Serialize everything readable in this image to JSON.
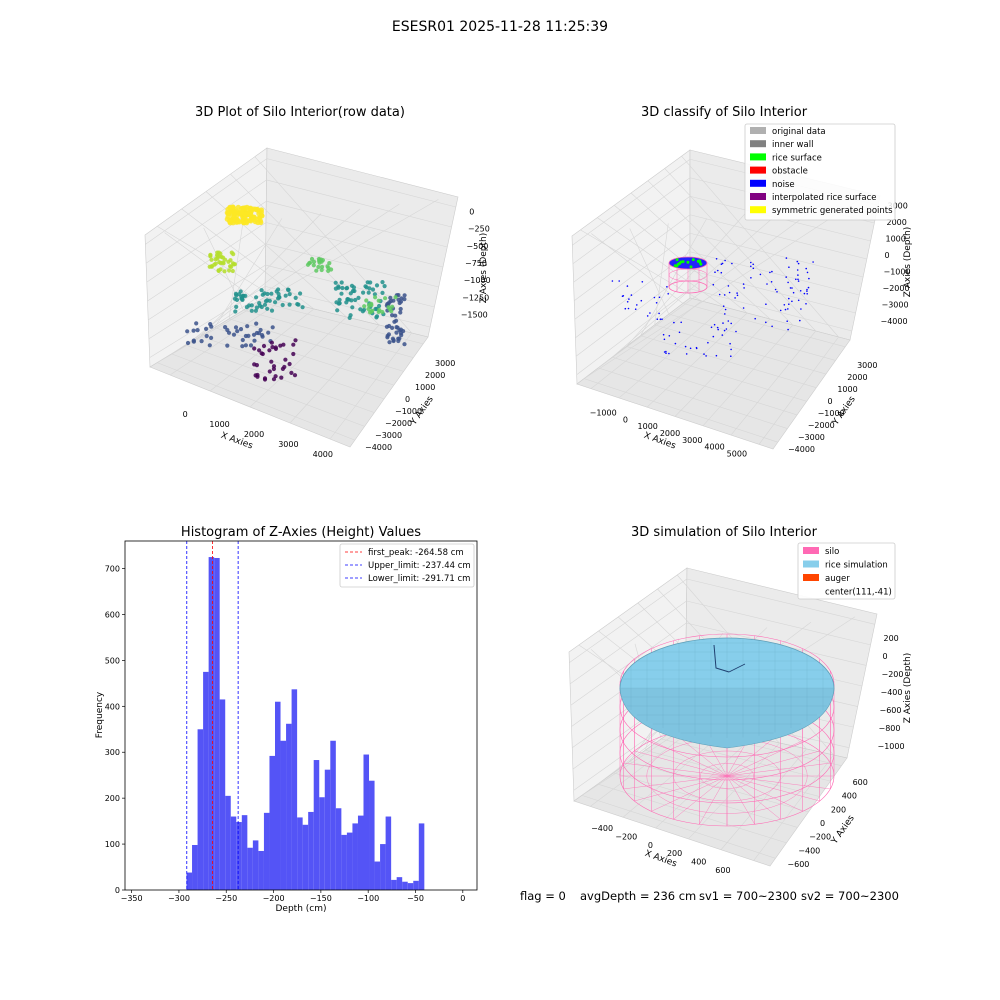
{
  "suptitle": "ESESR01 2025-11-28 11:25:39",
  "footer": {
    "flag": "flag = 0",
    "avg_depth": "avgDepth = 236 cm",
    "sv1": "sv1 = 700~2300",
    "sv2": "sv2 = 700~2300"
  },
  "colors": {
    "histogram_bar": "#4b4bf5",
    "first_peak_line": "#ff0000",
    "limit_lines": "#0000ff",
    "silo": "#ff69b4",
    "rice_simulation": "#87ceeb",
    "auger": "#ff4500",
    "rice_surface": "#00ff00",
    "noise": "#0000ff"
  },
  "chart_data": [
    {
      "type": "scatter",
      "projection": "3d",
      "title": "3D Plot of Silo Interior(row data)",
      "xlabel": "X Axies",
      "ylabel": "Y Axies",
      "zlabel": "Z Axies (Depth)",
      "x_ticks": [
        "0",
        "1000",
        "2000",
        "3000",
        "4000"
      ],
      "y_ticks": [
        "−4000",
        "−3000",
        "−2000",
        "−1000",
        "0",
        "1000",
        "2000",
        "3000"
      ],
      "z_ticks": [
        "0",
        "−250",
        "−500",
        "−750",
        "−1000",
        "−1250",
        "−1500"
      ],
      "colormap": "viridis",
      "grid": true
    },
    {
      "type": "scatter",
      "projection": "3d",
      "title": "3D classify of Silo Interior",
      "xlabel": "X Axies",
      "ylabel": "Y Axies",
      "zlabel": "Z Axies (Depth)",
      "x_ticks": [
        "−1000",
        "0",
        "1000",
        "2000",
        "3000",
        "4000",
        "5000"
      ],
      "y_ticks": [
        "−4000",
        "−3000",
        "−2000",
        "−1000",
        "0",
        "1000",
        "2000",
        "3000"
      ],
      "z_ticks": [
        "3000",
        "2000",
        "1000",
        "0",
        "−1000",
        "−2000",
        "−3000",
        "−4000"
      ],
      "legend_position": "top-right",
      "legend": [
        {
          "label": "original data",
          "color": "#b0b0b0"
        },
        {
          "label": "inner wall",
          "color": "#808080"
        },
        {
          "label": "rice surface",
          "color": "#00ff00"
        },
        {
          "label": "obstacle",
          "color": "#ff0000"
        },
        {
          "label": "noise",
          "color": "#0000ff"
        },
        {
          "label": "interpolated rice surface",
          "color": "#800080"
        },
        {
          "label": "symmetric generated points",
          "color": "#ffff00"
        }
      ],
      "grid": true
    },
    {
      "type": "bar",
      "title": "Histogram of Z-Axies (Height) Values",
      "xlabel": "Depth (cm)",
      "ylabel": "Frequency",
      "xlim": [
        -357,
        15
      ],
      "ylim": [
        0,
        760
      ],
      "x_ticks": [
        -350,
        -300,
        -250,
        -200,
        -150,
        -100,
        -50,
        0
      ],
      "y_ticks": [
        0,
        100,
        200,
        300,
        400,
        500,
        600,
        700
      ],
      "bins": {
        "start": -292,
        "width": 5.845,
        "counts": [
          38,
          98,
          350,
          475,
          725,
          723,
          415,
          205,
          160,
          148,
          163,
          92,
          108,
          85,
          168,
          292,
          410,
          325,
          362,
          437,
          158,
          142,
          170,
          283,
          202,
          262,
          325,
          178,
          120,
          125,
          145,
          162,
          295,
          238,
          62,
          100,
          160,
          22,
          28,
          18,
          15,
          20,
          145
        ]
      },
      "vlines": [
        {
          "x": -264.58,
          "label": "first_peak: -264.58 cm",
          "color": "#ff0000"
        },
        {
          "x": -237.44,
          "label": "Upper_limit: -237.44 cm",
          "color": "#0000ff"
        },
        {
          "x": -291.71,
          "label": "Lower_limit: -291.71 cm",
          "color": "#0000ff"
        }
      ],
      "legend_position": "top-right"
    },
    {
      "type": "surface",
      "projection": "3d",
      "title": "3D simulation of Silo Interior",
      "xlabel": "X Axies",
      "ylabel": "Y Axies",
      "zlabel": "Z Axies (Depth)",
      "x_ticks": [
        "−400",
        "−200",
        "0",
        "200",
        "400",
        "600"
      ],
      "y_ticks": [
        "−600",
        "−400",
        "−200",
        "0",
        "200",
        "400",
        "600"
      ],
      "z_ticks": [
        "200",
        "0",
        "−200",
        "−400",
        "−600",
        "−800",
        "−1000"
      ],
      "legend_position": "top-right",
      "legend": [
        {
          "label": "silo",
          "color": "#ff69b4"
        },
        {
          "label": "rice simulation",
          "color": "#87ceeb"
        },
        {
          "label": "auger",
          "color": "#ff4500"
        },
        {
          "label": "center(111,-41)",
          "color": ""
        }
      ],
      "grid": true
    }
  ]
}
